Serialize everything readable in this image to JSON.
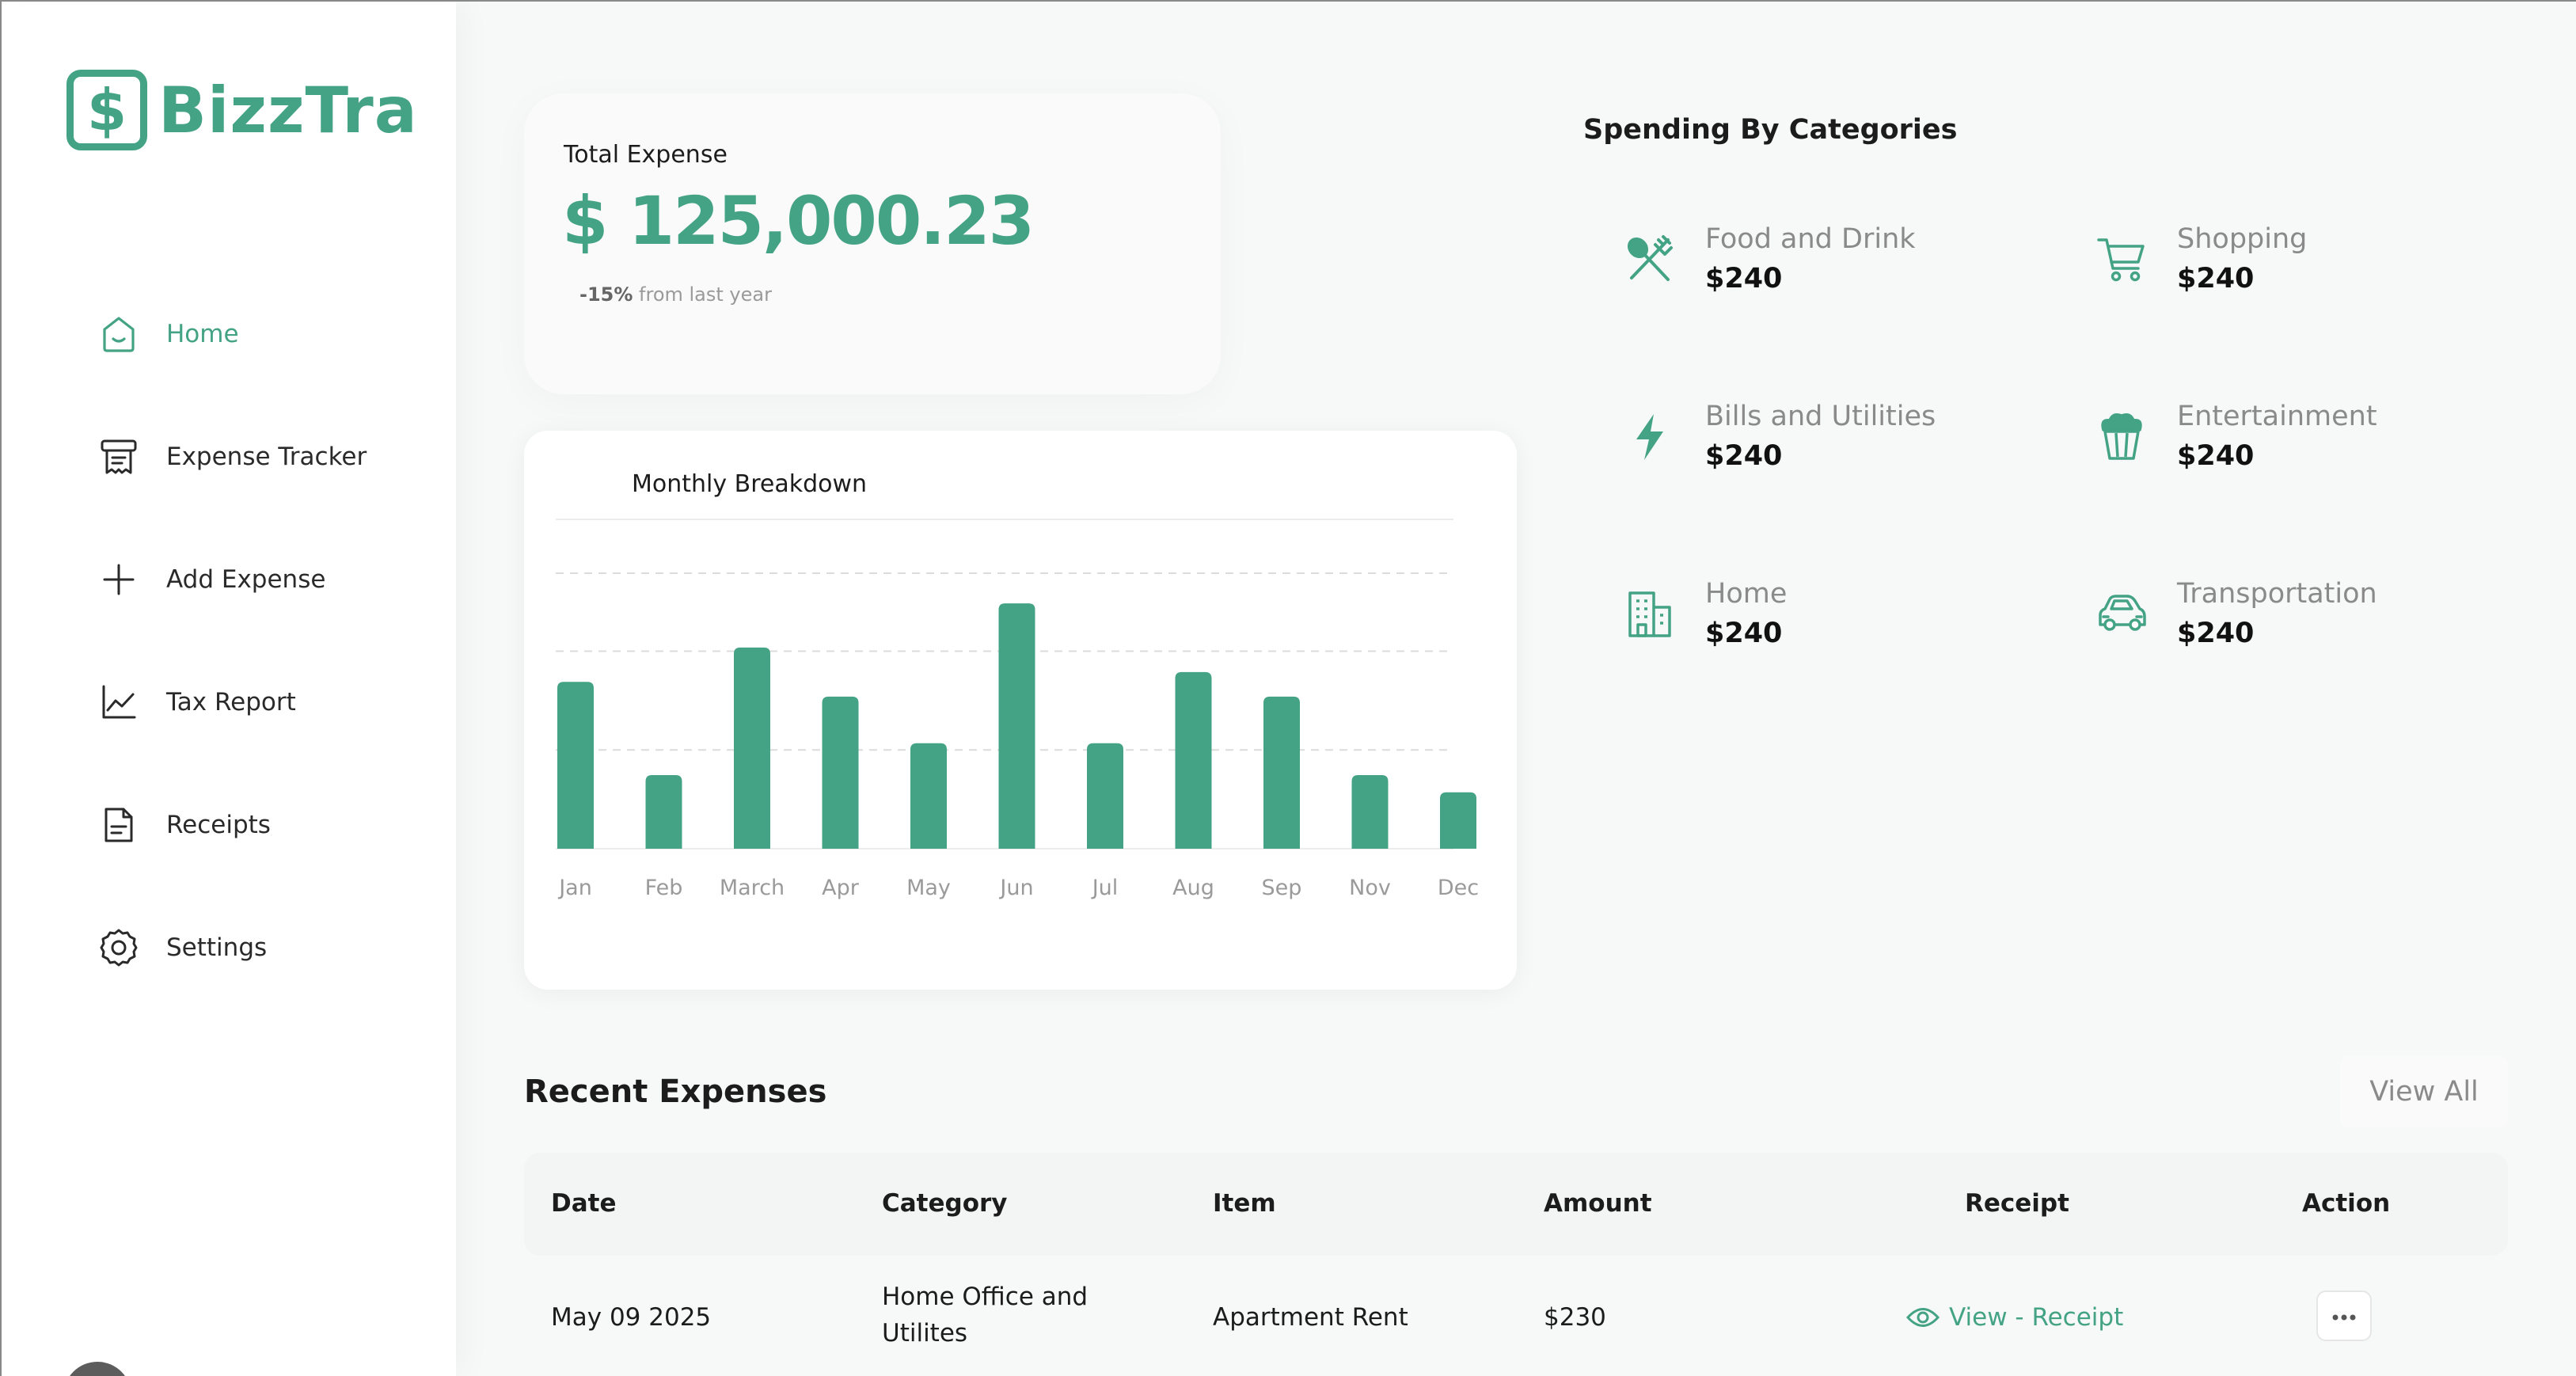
{
  "app": {
    "name": "BizzTra",
    "logo_symbol": "$",
    "accent": "#43a384"
  },
  "sidebar": {
    "items": [
      {
        "label": "Home",
        "icon": "home-icon",
        "active": true
      },
      {
        "label": "Expense Tracker",
        "icon": "receipt-tracker-icon",
        "active": false
      },
      {
        "label": "Add Expense",
        "icon": "plus-icon",
        "active": false
      },
      {
        "label": "Tax Report",
        "icon": "line-chart-icon",
        "active": false
      },
      {
        "label": "Receipts",
        "icon": "document-icon",
        "active": false
      },
      {
        "label": "Settings",
        "icon": "gear-icon",
        "active": false
      }
    ]
  },
  "total": {
    "title": "Total Expense",
    "amount": "$ 125,000.23",
    "change_value": "-15%",
    "change_text": " from last year"
  },
  "chart_data": {
    "type": "bar",
    "title": "Monthly Breakdown",
    "categories": [
      "Jan",
      "Feb",
      "March",
      "Apr",
      "May",
      "Jun",
      "Jul",
      "Aug",
      "Sep",
      "Nov",
      "Dec"
    ],
    "values": [
      68,
      30,
      82,
      62,
      43,
      100,
      43,
      72,
      62,
      30,
      23
    ],
    "ylim": [
      0,
      122
    ],
    "grid": true,
    "bar_color": "#43a384"
  },
  "spending": {
    "title": "Spending By Categories",
    "categories": [
      {
        "name": "Food and Drink",
        "value": "$240",
        "icon": "utensils-icon"
      },
      {
        "name": "Shopping",
        "value": "$240",
        "icon": "shopping-cart-icon"
      },
      {
        "name": "Bills and Utilities",
        "value": "$240",
        "icon": "lightning-icon"
      },
      {
        "name": "Entertainment",
        "value": "$240",
        "icon": "popcorn-icon"
      },
      {
        "name": "Home",
        "value": "$240",
        "icon": "building-icon"
      },
      {
        "name": "Transportation",
        "value": "$240",
        "icon": "car-icon"
      }
    ]
  },
  "recent": {
    "title": "Recent Expenses",
    "view_all": "View All",
    "columns": [
      "Date",
      "Category",
      "Item",
      "Amount",
      "Receipt",
      "Action"
    ],
    "rows": [
      {
        "date": "May 09 2025",
        "category_line1": "Home Office and",
        "category_line2": "Utilites",
        "item": "Apartment Rent",
        "amount": "$230",
        "receipt": "View - Receipt"
      }
    ]
  }
}
